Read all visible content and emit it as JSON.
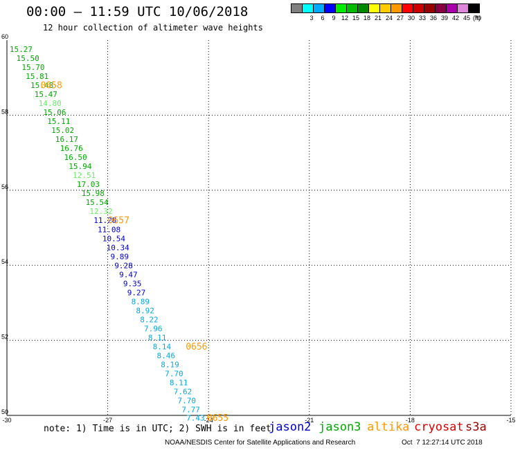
{
  "header": {
    "title": "00:00 – 11:59 UTC 10/06/2018",
    "subtitle": "12 hour collection of altimeter wave heights"
  },
  "legend": {
    "unit": "(ft)",
    "items": [
      {
        "label": "",
        "color": "#808080"
      },
      {
        "label": "3",
        "color": "#00ffff"
      },
      {
        "label": "6",
        "color": "#00aaff"
      },
      {
        "label": "9",
        "color": "#0000ff"
      },
      {
        "label": "12",
        "color": "#00ee00"
      },
      {
        "label": "15",
        "color": "#00bb00"
      },
      {
        "label": "18",
        "color": "#008800"
      },
      {
        "label": "21",
        "color": "#ffff00"
      },
      {
        "label": "24",
        "color": "#ffcc00"
      },
      {
        "label": "27",
        "color": "#ff9900"
      },
      {
        "label": "30",
        "color": "#ff0000"
      },
      {
        "label": "33",
        "color": "#cc0000"
      },
      {
        "label": "36",
        "color": "#990000"
      },
      {
        "label": "39",
        "color": "#880044"
      },
      {
        "label": "42",
        "color": "#aa00aa"
      },
      {
        "label": "45",
        "color": "#dd88dd"
      },
      {
        "label": "70",
        "color": "#000000"
      }
    ]
  },
  "chart_data": {
    "type": "scatter",
    "title": "00:00 – 11:59 UTC 10/06/2018",
    "subtitle": "12 hour collection of altimeter wave heights",
    "xlabel": "",
    "ylabel": "",
    "xlim": [
      -30,
      -15
    ],
    "ylim": [
      50,
      60
    ],
    "x_ticks": [
      "-30",
      "-27",
      "-24",
      "-21",
      "-18",
      "-15"
    ],
    "y_ticks": [
      "50",
      "52",
      "54",
      "56",
      "58",
      "60"
    ],
    "grid": true,
    "series_colors": {
      "green": "#00aa00",
      "lightgreen": "#66ee66",
      "blue": "#0000cc",
      "cyan": "#00aadd",
      "orange": "#ff9900"
    },
    "points": [
      {
        "lon": -29.92,
        "lat": 59.74,
        "swh": "15.27",
        "c": "green"
      },
      {
        "lon": -29.72,
        "lat": 59.5,
        "swh": "15.50",
        "c": "green"
      },
      {
        "lon": -29.56,
        "lat": 59.26,
        "swh": "15.70",
        "c": "green"
      },
      {
        "lon": -29.44,
        "lat": 59.02,
        "swh": "15.81",
        "c": "green"
      },
      {
        "lon": -29.3,
        "lat": 58.78,
        "swh": "15.48",
        "c": "green"
      },
      {
        "lon": -29.18,
        "lat": 58.54,
        "swh": "15.47",
        "c": "green"
      },
      {
        "lon": -29.06,
        "lat": 58.3,
        "swh": "14.80",
        "c": "lightgreen"
      },
      {
        "lon": -28.92,
        "lat": 58.06,
        "swh": "15.06",
        "c": "green"
      },
      {
        "lon": -28.8,
        "lat": 57.82,
        "swh": "15.11",
        "c": "green"
      },
      {
        "lon": -28.68,
        "lat": 57.58,
        "swh": "15.02",
        "c": "green"
      },
      {
        "lon": -28.56,
        "lat": 57.34,
        "swh": "16.17",
        "c": "green"
      },
      {
        "lon": -28.42,
        "lat": 57.1,
        "swh": "16.76",
        "c": "green"
      },
      {
        "lon": -28.3,
        "lat": 56.86,
        "swh": "16.50",
        "c": "green"
      },
      {
        "lon": -28.16,
        "lat": 56.62,
        "swh": "15.94",
        "c": "green"
      },
      {
        "lon": -28.04,
        "lat": 56.38,
        "swh": "12.51",
        "c": "lightgreen"
      },
      {
        "lon": -27.92,
        "lat": 56.14,
        "swh": "17.03",
        "c": "green"
      },
      {
        "lon": -27.78,
        "lat": 55.9,
        "swh": "15.98",
        "c": "green"
      },
      {
        "lon": -27.66,
        "lat": 55.66,
        "swh": "15.54",
        "c": "green"
      },
      {
        "lon": -27.54,
        "lat": 55.42,
        "swh": "12.32",
        "c": "lightgreen"
      },
      {
        "lon": -27.42,
        "lat": 55.18,
        "swh": "11.28",
        "c": "blue"
      },
      {
        "lon": -27.3,
        "lat": 54.94,
        "swh": "11.08",
        "c": "blue"
      },
      {
        "lon": -27.16,
        "lat": 54.7,
        "swh": "10.54",
        "c": "blue"
      },
      {
        "lon": -27.04,
        "lat": 54.46,
        "swh": "10.34",
        "c": "blue"
      },
      {
        "lon": -26.92,
        "lat": 54.22,
        "swh": "9.89",
        "c": "blue"
      },
      {
        "lon": -26.8,
        "lat": 53.98,
        "swh": "9.28",
        "c": "blue"
      },
      {
        "lon": -26.66,
        "lat": 53.74,
        "swh": "9.47",
        "c": "blue"
      },
      {
        "lon": -26.54,
        "lat": 53.5,
        "swh": "9.35",
        "c": "blue"
      },
      {
        "lon": -26.42,
        "lat": 53.26,
        "swh": "9.27",
        "c": "blue"
      },
      {
        "lon": -26.3,
        "lat": 53.02,
        "swh": "8.89",
        "c": "cyan"
      },
      {
        "lon": -26.16,
        "lat": 52.78,
        "swh": "8.92",
        "c": "cyan"
      },
      {
        "lon": -26.04,
        "lat": 52.54,
        "swh": "8.22",
        "c": "cyan"
      },
      {
        "lon": -25.92,
        "lat": 52.3,
        "swh": "7.96",
        "c": "cyan"
      },
      {
        "lon": -25.8,
        "lat": 52.06,
        "swh": "8.11",
        "c": "cyan"
      },
      {
        "lon": -25.66,
        "lat": 51.82,
        "swh": "8.14",
        "c": "cyan"
      },
      {
        "lon": -25.54,
        "lat": 51.58,
        "swh": "8.46",
        "c": "cyan"
      },
      {
        "lon": -25.42,
        "lat": 51.34,
        "swh": "8.19",
        "c": "cyan"
      },
      {
        "lon": -25.3,
        "lat": 51.1,
        "swh": "7.70",
        "c": "cyan"
      },
      {
        "lon": -25.16,
        "lat": 50.86,
        "swh": "8.11",
        "c": "cyan"
      },
      {
        "lon": -25.04,
        "lat": 50.62,
        "swh": "7.62",
        "c": "cyan"
      },
      {
        "lon": -24.92,
        "lat": 50.38,
        "swh": "7.70",
        "c": "cyan"
      },
      {
        "lon": -24.8,
        "lat": 50.14,
        "swh": "7.77",
        "c": "cyan"
      },
      {
        "lon": -24.66,
        "lat": 49.92,
        "swh": "7.43",
        "c": "cyan"
      }
    ],
    "time_labels": [
      {
        "lon": -29.0,
        "lat": 58.78,
        "text": "0658"
      },
      {
        "lon": -27.0,
        "lat": 55.18,
        "text": "0657"
      },
      {
        "lon": -24.68,
        "lat": 51.82,
        "text": "0656"
      },
      {
        "lon": -24.05,
        "lat": 49.92,
        "text": "0655"
      }
    ]
  },
  "footer": {
    "note": "note: 1) Time is in UTC; 2) SWH is in feet",
    "missions": [
      {
        "name": "jason2",
        "color": "#0000cc"
      },
      {
        "name": "jason3",
        "color": "#00aa00"
      },
      {
        "name": "altika",
        "color": "#ff9900"
      },
      {
        "name": "cryosat",
        "color": "#dd0000"
      },
      {
        "name": "s3a",
        "color": "#990000"
      }
    ],
    "credit": "NOAA/NESDIS Center for Satellite Applications and Research",
    "timestamp": "Oct  7 12:27:14 UTC 2018"
  }
}
